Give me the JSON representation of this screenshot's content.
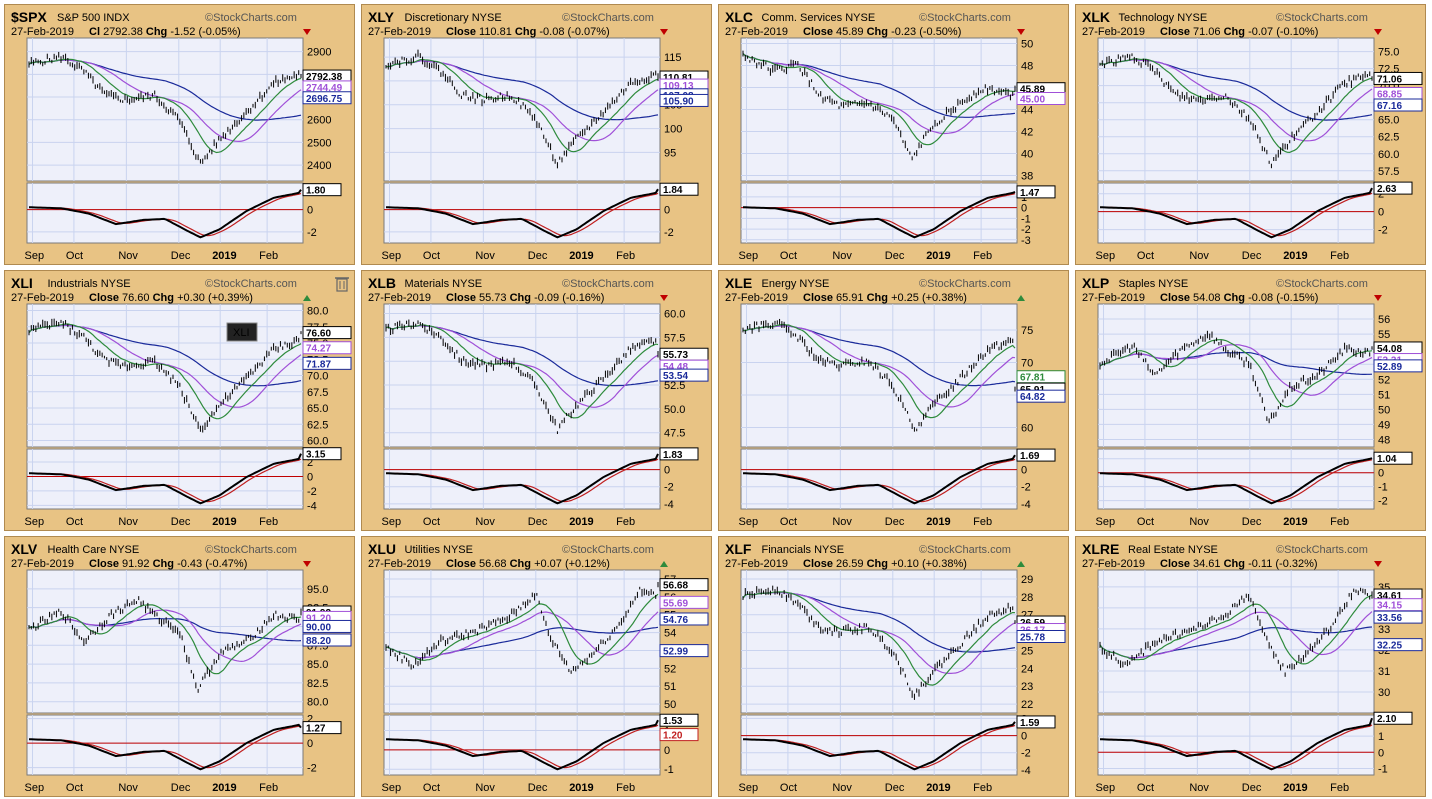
{
  "copyright": "StockCharts.com",
  "date": "27-Feb-2019",
  "x_labels": [
    "Sep",
    "Oct",
    "Nov",
    "Dec",
    "2019",
    "Feb"
  ],
  "colors": {
    "price": "#000000",
    "ma50": "#2e8b3c",
    "ma100": "#a050d8",
    "ma200": "#1a2a9a",
    "signal": "#c02020",
    "zero": "#c00000",
    "panel": "#e8c384",
    "plot": "#eef0fa",
    "grid": "#c9d3ef"
  },
  "chart_data": [
    {
      "type": "line",
      "symbol": "$SPX",
      "name": "S&P 500",
      "exchange": "INDX",
      "close_label": "Cl",
      "close": "2792.38",
      "change": "-1.52 (-0.05%)",
      "direction": "down",
      "yticks": [
        "2900",
        "2800",
        "2700",
        "2600",
        "2500",
        "2400"
      ],
      "ylim": [
        2330,
        2960
      ],
      "macd_yticks": [
        "0",
        "-2"
      ],
      "macd_ylim": [
        -3.0,
        2.4
      ],
      "price_labels": [
        {
          "text": "2792.38",
          "v": 2792.38,
          "bold": true
        },
        {
          "text": "2744.49",
          "v": 2744.49
        },
        {
          "text": "2696.75",
          "v": 2696.75
        }
      ],
      "macd_label": "1.80",
      "macd_label_v": 1.8,
      "shape": "a",
      "annotation": ""
    },
    {
      "type": "line",
      "symbol": "XLY",
      "name": "Discretionary",
      "exchange": "NYSE",
      "close_label": "Close",
      "close": "110.81",
      "change": "-0.08 (-0.07%)",
      "direction": "down",
      "yticks": [
        "115",
        "110",
        "105",
        "100",
        "95"
      ],
      "ylim": [
        89,
        119
      ],
      "macd_yticks": [
        "0",
        "-2"
      ],
      "macd_ylim": [
        -3.0,
        2.4
      ],
      "price_labels": [
        {
          "text": "110.81",
          "v": 110.81,
          "bold": true
        },
        {
          "text": "109.13",
          "v": 109.13
        },
        {
          "text": "107.08",
          "v": 107.08
        },
        {
          "text": "105.90",
          "v": 105.9
        }
      ],
      "macd_label": "1.84",
      "macd_label_v": 1.84,
      "shape": "a",
      "annotation": ""
    },
    {
      "type": "line",
      "symbol": "XLC",
      "name": "Comm. Services",
      "exchange": "NYSE",
      "close_label": "Close",
      "close": "45.89",
      "change": "-0.23 (-0.50%)",
      "direction": "down",
      "yticks": [
        "50",
        "48",
        "46",
        "44",
        "42",
        "40",
        "38"
      ],
      "ylim": [
        37.5,
        50.5
      ],
      "macd_yticks": [
        "1",
        "0",
        "-1",
        "-2",
        "-3"
      ],
      "macd_ylim": [
        -3.3,
        2.3
      ],
      "price_labels": [
        {
          "text": "45.89",
          "v": 45.89,
          "bold": true
        },
        {
          "text": "45.00",
          "v": 45.0
        }
      ],
      "macd_label": "1.47",
      "macd_label_v": 1.47,
      "shape": "b",
      "annotation": ""
    },
    {
      "type": "line",
      "symbol": "XLK",
      "name": "Technology",
      "exchange": "NYSE",
      "close_label": "Close",
      "close": "71.06",
      "change": "-0.07 (-0.10%)",
      "direction": "down",
      "yticks": [
        "75.0",
        "72.5",
        "70.0",
        "67.5",
        "65.0",
        "62.5",
        "60.0",
        "57.5"
      ],
      "ylim": [
        56,
        77
      ],
      "macd_yticks": [
        "2",
        "0",
        "-2"
      ],
      "macd_ylim": [
        -3.5,
        3.2
      ],
      "price_labels": [
        {
          "text": "71.06",
          "v": 71.06,
          "bold": true
        },
        {
          "text": "68.85",
          "v": 68.85
        },
        {
          "text": "67.16",
          "v": 67.16
        }
      ],
      "macd_label": "2.63",
      "macd_label_v": 2.63,
      "shape": "a",
      "annotation": ""
    },
    {
      "type": "line",
      "symbol": "XLI",
      "name": "Industrials",
      "exchange": "NYSE",
      "close_label": "Close",
      "close": "76.60",
      "change": "+0.30 (+0.39%)",
      "direction": "up",
      "yticks": [
        "80.0",
        "77.5",
        "75.0",
        "72.5",
        "70.0",
        "67.5",
        "65.0",
        "62.5",
        "60.0"
      ],
      "ylim": [
        59,
        81
      ],
      "macd_yticks": [
        "2",
        "0",
        "-2",
        "-4"
      ],
      "macd_ylim": [
        -4.5,
        3.8
      ],
      "price_labels": [
        {
          "text": "76.60",
          "v": 76.6,
          "bold": true
        },
        {
          "text": "74.27",
          "v": 74.27
        },
        {
          "text": "71.87",
          "v": 71.87
        }
      ],
      "macd_label": "3.15",
      "macd_label_v": 3.15,
      "shape": "a",
      "annotation": "XLI"
    },
    {
      "type": "line",
      "symbol": "XLB",
      "name": "Materials",
      "exchange": "NYSE",
      "close_label": "Close",
      "close": "55.73",
      "change": "-0.09 (-0.16%)",
      "direction": "down",
      "yticks": [
        "60.0",
        "57.5",
        "55.0",
        "52.5",
        "50.0",
        "47.5"
      ],
      "ylim": [
        46,
        61
      ],
      "macd_yticks": [
        "0",
        "-2",
        "-4"
      ],
      "macd_ylim": [
        -4.6,
        2.4
      ],
      "price_labels": [
        {
          "text": "55.73",
          "v": 55.73,
          "bold": true
        },
        {
          "text": "54.48",
          "v": 54.48
        },
        {
          "text": "53.54",
          "v": 53.54
        }
      ],
      "macd_label": "1.83",
      "macd_label_v": 1.83,
      "shape": "a",
      "annotation": ""
    },
    {
      "type": "line",
      "symbol": "XLE",
      "name": "Energy",
      "exchange": "NYSE",
      "close_label": "Close",
      "close": "65.91",
      "change": "+0.25 (+0.38%)",
      "direction": "up",
      "yticks": [
        "75",
        "70",
        "65",
        "60"
      ],
      "ylim": [
        57,
        79
      ],
      "macd_yticks": [
        "0",
        "-2",
        "-4"
      ],
      "macd_ylim": [
        -4.6,
        2.4
      ],
      "price_labels": [
        {
          "text": "67.81",
          "v": 67.81
        },
        {
          "text": "65.91",
          "v": 65.91,
          "bold": true
        },
        {
          "text": "64.82",
          "v": 64.82
        }
      ],
      "macd_label": "1.69",
      "macd_label_v": 1.69,
      "shape": "a",
      "annotation": ""
    },
    {
      "type": "line",
      "symbol": "XLP",
      "name": "Staples",
      "exchange": "NYSE",
      "close_label": "Close",
      "close": "54.08",
      "change": "-0.08 (-0.15%)",
      "direction": "down",
      "yticks": [
        "56",
        "55",
        "54",
        "53",
        "52",
        "51",
        "50",
        "49",
        "48"
      ],
      "ylim": [
        47.5,
        57
      ],
      "macd_yticks": [
        "1",
        "0",
        "-1",
        "-2"
      ],
      "macd_ylim": [
        -2.6,
        1.7
      ],
      "price_labels": [
        {
          "text": "54.08",
          "v": 54.08,
          "bold": true
        },
        {
          "text": "53.31",
          "v": 53.31
        },
        {
          "text": "52.89",
          "v": 52.89
        }
      ],
      "macd_label": "1.04",
      "macd_label_v": 1.04,
      "shape": "c",
      "annotation": ""
    },
    {
      "type": "line",
      "symbol": "XLV",
      "name": "Health Care",
      "exchange": "NYSE",
      "close_label": "Close",
      "close": "91.92",
      "change": "-0.43 (-0.47%)",
      "direction": "down",
      "yticks": [
        "95.0",
        "92.5",
        "90.0",
        "87.5",
        "85.0",
        "82.5",
        "80.0"
      ],
      "ylim": [
        78.5,
        97.5
      ],
      "macd_yticks": [
        "2",
        "0",
        "-2"
      ],
      "macd_ylim": [
        -2.6,
        2.3
      ],
      "price_labels": [
        {
          "text": "91.92",
          "v": 91.92,
          "bold": true
        },
        {
          "text": "91.20",
          "v": 91.2
        },
        {
          "text": "90.00",
          "v": 90.0
        },
        {
          "text": "88.20",
          "v": 88.2
        }
      ],
      "macd_label": "1.27",
      "macd_label_v": 1.27,
      "shape": "c",
      "annotation": ""
    },
    {
      "type": "line",
      "symbol": "XLU",
      "name": "Utilities",
      "exchange": "NYSE",
      "close_label": "Close",
      "close": "56.68",
      "change": "+0.07 (+0.12%)",
      "direction": "up",
      "yticks": [
        "57",
        "56",
        "55",
        "54",
        "53",
        "52",
        "51",
        "50"
      ],
      "ylim": [
        49.5,
        57.5
      ],
      "macd_yticks": [
        "1",
        "0",
        "-1"
      ],
      "macd_ylim": [
        -1.3,
        1.8
      ],
      "price_labels": [
        {
          "text": "56.68",
          "v": 56.68,
          "bold": true
        },
        {
          "text": "55.69",
          "v": 55.69
        },
        {
          "text": "54.76",
          "v": 54.76
        },
        {
          "text": "52.99",
          "v": 52.99
        }
      ],
      "macd_label": "1.53",
      "macd_label_v": 1.53,
      "macd_label2": "1.20",
      "macd_label2_v": 1.2,
      "shape": "d",
      "annotation": ""
    },
    {
      "type": "line",
      "symbol": "XLF",
      "name": "Financials",
      "exchange": "NYSE",
      "close_label": "Close",
      "close": "26.59",
      "change": "+0.10 (+0.38%)",
      "direction": "up",
      "yticks": [
        "29",
        "28",
        "27",
        "26",
        "25",
        "24",
        "23",
        "22"
      ],
      "ylim": [
        21.5,
        29.5
      ],
      "macd_yticks": [
        "2",
        "0",
        "-2",
        "-4"
      ],
      "macd_ylim": [
        -4.6,
        2.4
      ],
      "price_labels": [
        {
          "text": "26.59",
          "v": 26.59,
          "bold": true
        },
        {
          "text": "26.17",
          "v": 26.17
        },
        {
          "text": "25.78",
          "v": 25.78
        }
      ],
      "macd_label": "1.59",
      "macd_label_v": 1.59,
      "shape": "a",
      "annotation": ""
    },
    {
      "type": "line",
      "symbol": "XLRE",
      "name": "Real Estate",
      "exchange": "NYSE",
      "close_label": "Close",
      "close": "34.61",
      "change": "-0.11 (-0.32%)",
      "direction": "down",
      "yticks": [
        "35",
        "34",
        "33",
        "32",
        "31",
        "30"
      ],
      "ylim": [
        29,
        35.8
      ],
      "macd_yticks": [
        "1",
        "0",
        "-1"
      ],
      "macd_ylim": [
        -1.4,
        2.3
      ],
      "price_labels": [
        {
          "text": "34.61",
          "v": 34.61,
          "bold": true
        },
        {
          "text": "34.15",
          "v": 34.15
        },
        {
          "text": "33.56",
          "v": 33.56
        },
        {
          "text": "32.25",
          "v": 32.25
        }
      ],
      "macd_label": "2.10",
      "macd_label_v": 2.1,
      "shape": "d",
      "annotation": ""
    }
  ]
}
